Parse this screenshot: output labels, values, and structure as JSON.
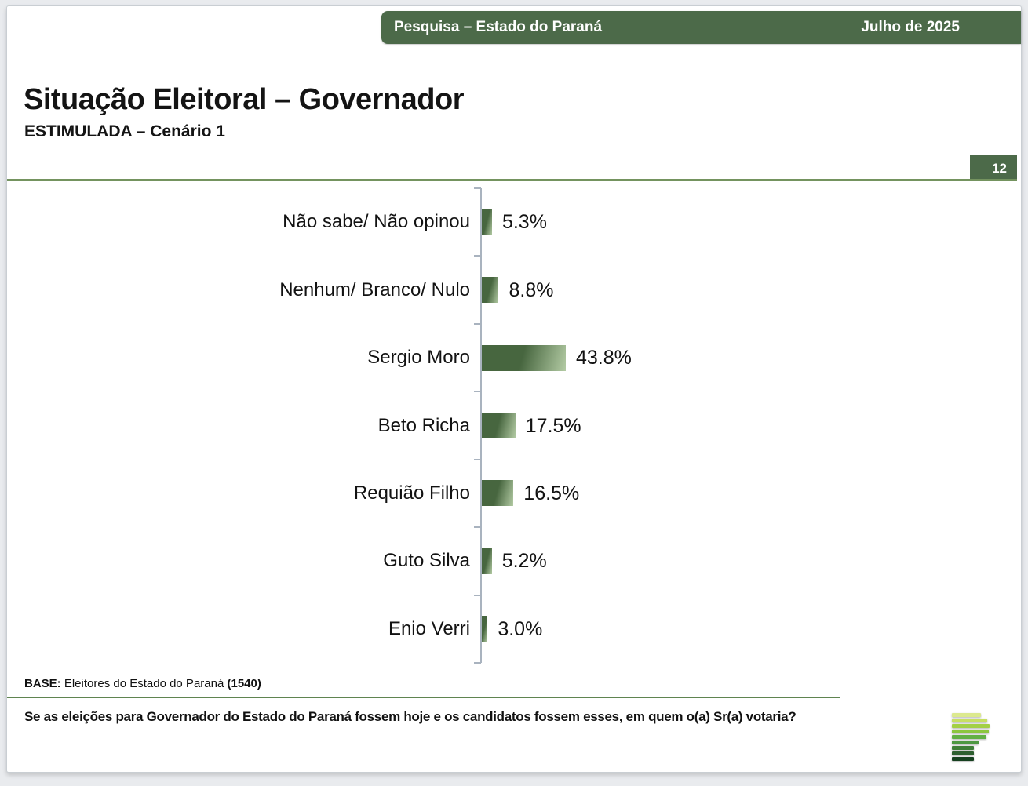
{
  "header_bar": {
    "left_label": "Pesquisa – Estado do Paraná",
    "right_label": "Julho de 2025"
  },
  "slide": {
    "title": "Situação Eleitoral – Governador",
    "subtitle": "ESTIMULADA – Cenário 1",
    "page_number": "12"
  },
  "chart_data": {
    "type": "bar",
    "orientation": "horizontal",
    "title": "Situação Eleitoral – Governador / ESTIMULADA – Cenário 1",
    "categories": [
      "Não sabe/ Não opinou",
      "Nenhum/ Branco/ Nulo",
      "Sergio Moro",
      "Beto Richa",
      "Requião Filho",
      "Guto Silva",
      "Enio Verri"
    ],
    "values": [
      5.3,
      8.8,
      43.8,
      17.5,
      16.5,
      5.2,
      3.0
    ],
    "value_labels": [
      "5.3%",
      "8.8%",
      "43.8%",
      "17.5%",
      "16.5%",
      "5.2%",
      "3.0%"
    ],
    "xlim": [
      0,
      100
    ],
    "xlabel": "",
    "ylabel": "",
    "grid": false,
    "legend": false,
    "bar_color_dark": "#47663f",
    "bar_color_light": "#b3cba4"
  },
  "footer": {
    "base_label": "BASE:",
    "base_text": " Eleitores do Estado do Paraná ",
    "base_count": "(1540)",
    "question": "Se as eleições para Governador do Estado do Paraná fossem hoje e os candidatos fossem esses, em quem o(a) Sr(a) votaria?"
  },
  "logo": {
    "name": "parana-pesquisas-logo",
    "bars": [
      {
        "width": 37,
        "color": "#dce98f"
      },
      {
        "width": 45,
        "color": "#c8df63"
      },
      {
        "width": 48,
        "color": "#a3d045"
      },
      {
        "width": 47,
        "color": "#8cc63f"
      },
      {
        "width": 44,
        "color": "#62b045"
      },
      {
        "width": 34,
        "color": "#4e9842"
      },
      {
        "width": 28,
        "color": "#3f7e38"
      },
      {
        "width": 28,
        "color": "#2d5f2f"
      },
      {
        "width": 28,
        "color": "#16401f"
      }
    ]
  },
  "colors": {
    "header_green": "#4c6a49",
    "rule_green": "#74935f",
    "axis_gray": "#a9b3bf"
  }
}
